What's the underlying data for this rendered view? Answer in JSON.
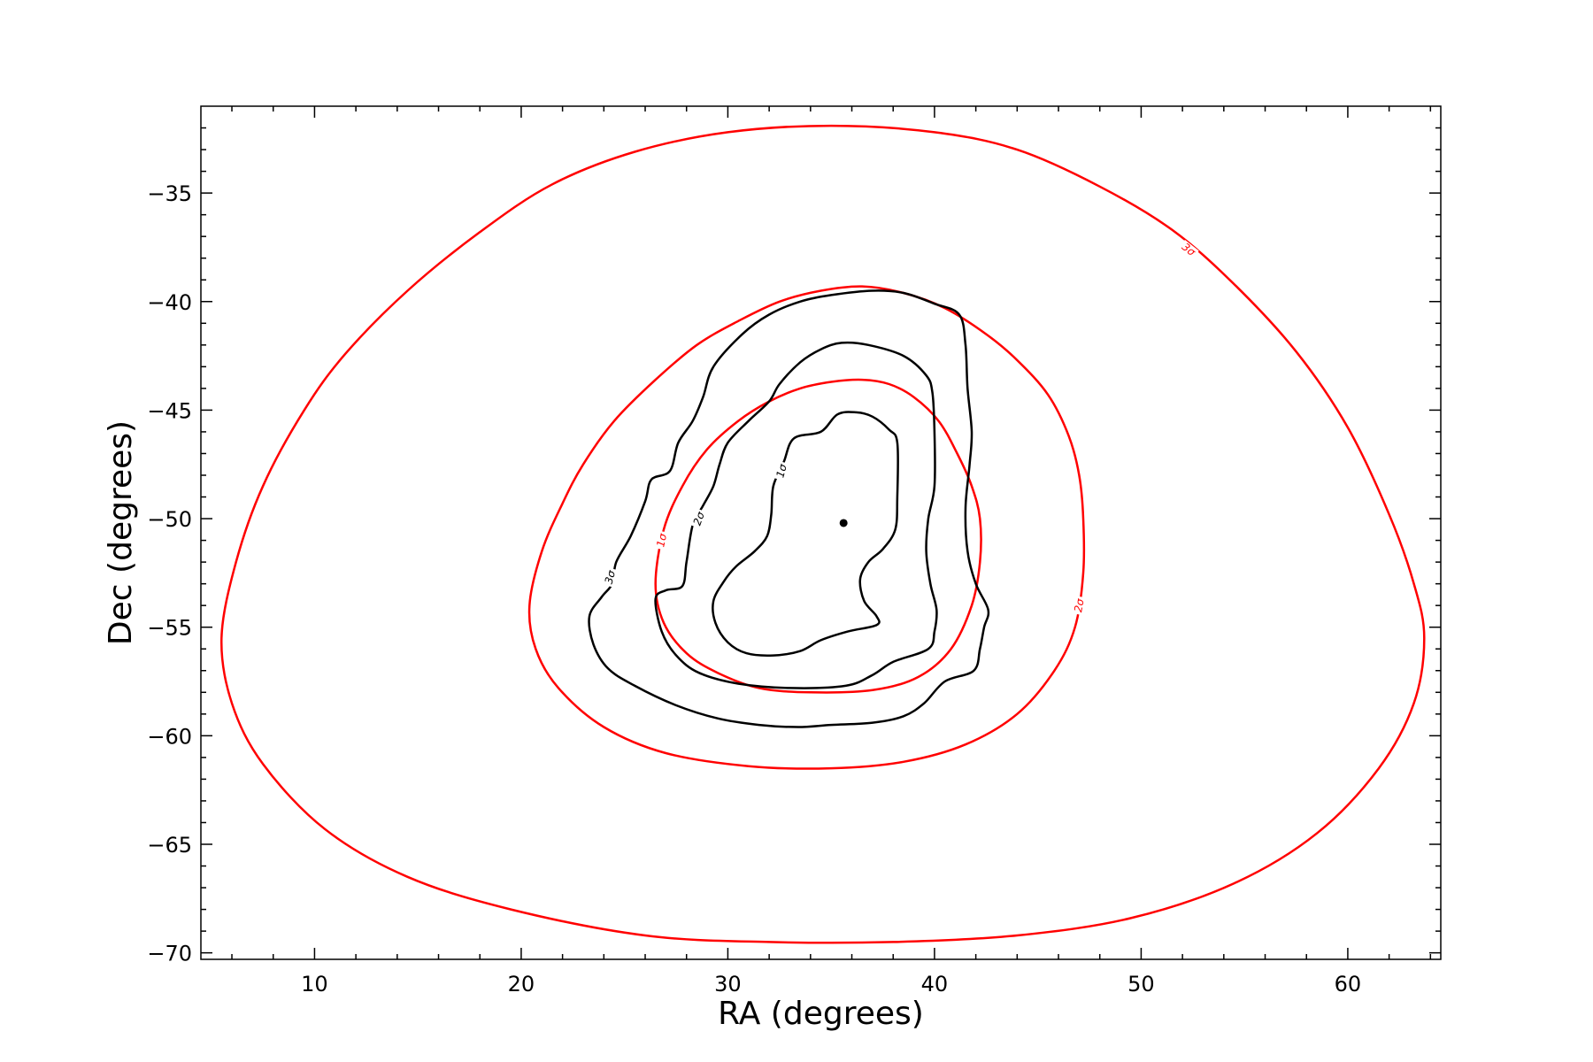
{
  "chart_data": {
    "type": "contour",
    "xlabel": "RA (degrees)",
    "ylabel": "Dec (degrees)",
    "xlim": [
      4.5,
      64.5
    ],
    "ylim": [
      -70.3,
      -31.0
    ],
    "xticks": [
      10,
      20,
      30,
      40,
      50,
      60
    ],
    "yticks": [
      -35,
      -40,
      -45,
      -50,
      -55,
      -60,
      -65,
      -70
    ],
    "grid": false,
    "legend": "none",
    "colors": {
      "black": "#000000",
      "red": "#ff0000"
    },
    "marker": {
      "x": 35.6,
      "y": -50.2
    },
    "contours": [
      {
        "color": "#ff0000",
        "level_label": "1σ",
        "label_at": [
          26.8,
          -51.0
        ],
        "label_angle": -78,
        "points": [
          [
            26.5,
            -53.0
          ],
          [
            26.9,
            -50.5
          ],
          [
            27.8,
            -48.5
          ],
          [
            29.0,
            -46.8
          ],
          [
            30.5,
            -45.5
          ],
          [
            32.0,
            -44.6
          ],
          [
            33.5,
            -44.0
          ],
          [
            35.0,
            -43.7
          ],
          [
            36.5,
            -43.6
          ],
          [
            37.8,
            -43.8
          ],
          [
            39.0,
            -44.4
          ],
          [
            40.2,
            -45.5
          ],
          [
            41.1,
            -47.0
          ],
          [
            41.8,
            -48.5
          ],
          [
            42.2,
            -50.0
          ],
          [
            42.2,
            -52.0
          ],
          [
            41.8,
            -54.0
          ],
          [
            40.8,
            -56.0
          ],
          [
            39.2,
            -57.3
          ],
          [
            37.0,
            -57.9
          ],
          [
            34.0,
            -58.0
          ],
          [
            31.5,
            -57.8
          ],
          [
            29.5,
            -57.1
          ],
          [
            28.0,
            -56.2
          ],
          [
            26.9,
            -54.8
          ],
          [
            26.5,
            -53.0
          ]
        ]
      },
      {
        "color": "#ff0000",
        "level_label": "2σ",
        "label_at": [
          47.0,
          -54.0
        ],
        "label_angle": -80,
        "points": [
          [
            20.4,
            -54.0
          ],
          [
            21.0,
            -51.5
          ],
          [
            22.0,
            -49.3
          ],
          [
            23.0,
            -47.5
          ],
          [
            24.5,
            -45.5
          ],
          [
            26.5,
            -43.6
          ],
          [
            28.5,
            -42.0
          ],
          [
            30.5,
            -40.9
          ],
          [
            32.5,
            -40.0
          ],
          [
            34.5,
            -39.5
          ],
          [
            36.5,
            -39.3
          ],
          [
            38.5,
            -39.6
          ],
          [
            40.5,
            -40.3
          ],
          [
            42.5,
            -41.5
          ],
          [
            44.0,
            -42.7
          ],
          [
            45.5,
            -44.3
          ],
          [
            46.5,
            -46.2
          ],
          [
            47.0,
            -48.0
          ],
          [
            47.2,
            -50.0
          ],
          [
            47.2,
            -52.5
          ],
          [
            46.8,
            -55.0
          ],
          [
            45.8,
            -57.0
          ],
          [
            44.0,
            -59.0
          ],
          [
            41.5,
            -60.4
          ],
          [
            38.5,
            -61.2
          ],
          [
            35.0,
            -61.5
          ],
          [
            31.0,
            -61.4
          ],
          [
            27.0,
            -60.8
          ],
          [
            24.0,
            -59.6
          ],
          [
            21.8,
            -57.8
          ],
          [
            20.7,
            -56.0
          ],
          [
            20.4,
            -54.0
          ]
        ]
      },
      {
        "color": "#ff0000",
        "level_label": "3σ",
        "label_at": [
          52.3,
          -37.6
        ],
        "label_angle": 38,
        "points": [
          [
            5.5,
            -55.5
          ],
          [
            6.2,
            -52.0
          ],
          [
            7.5,
            -48.5
          ],
          [
            9.5,
            -45.0
          ],
          [
            11.5,
            -42.4
          ],
          [
            14.5,
            -39.5
          ],
          [
            18.0,
            -36.8
          ],
          [
            21.5,
            -34.6
          ],
          [
            25.5,
            -33.1
          ],
          [
            30.0,
            -32.2
          ],
          [
            35.0,
            -31.9
          ],
          [
            40.0,
            -32.2
          ],
          [
            44.0,
            -33.0
          ],
          [
            48.0,
            -34.7
          ],
          [
            51.5,
            -36.7
          ],
          [
            54.5,
            -39.2
          ],
          [
            57.5,
            -42.3
          ],
          [
            60.0,
            -45.8
          ],
          [
            62.0,
            -49.8
          ],
          [
            63.2,
            -53.0
          ],
          [
            63.7,
            -55.5
          ],
          [
            63.2,
            -58.5
          ],
          [
            61.5,
            -61.5
          ],
          [
            58.5,
            -64.5
          ],
          [
            54.5,
            -66.8
          ],
          [
            49.5,
            -68.4
          ],
          [
            44.0,
            -69.2
          ],
          [
            38.0,
            -69.5
          ],
          [
            32.0,
            -69.5
          ],
          [
            26.0,
            -69.2
          ],
          [
            19.5,
            -68.0
          ],
          [
            14.5,
            -66.5
          ],
          [
            10.5,
            -64.3
          ],
          [
            7.5,
            -61.3
          ],
          [
            6.0,
            -58.5
          ],
          [
            5.5,
            -55.5
          ]
        ]
      },
      {
        "color": "#000000",
        "level_label": "1σ",
        "label_at": [
          32.6,
          -47.8
        ],
        "label_angle": -75,
        "points": [
          [
            33.2,
            -46.3
          ],
          [
            34.5,
            -46.0
          ],
          [
            35.3,
            -45.2
          ],
          [
            36.2,
            -45.1
          ],
          [
            37.0,
            -45.3
          ],
          [
            37.8,
            -45.9
          ],
          [
            38.2,
            -46.5
          ],
          [
            38.2,
            -49.0
          ],
          [
            38.1,
            -50.5
          ],
          [
            37.5,
            -51.4
          ],
          [
            36.8,
            -52.0
          ],
          [
            36.4,
            -52.8
          ],
          [
            36.6,
            -53.8
          ],
          [
            37.2,
            -54.5
          ],
          [
            37.2,
            -54.9
          ],
          [
            35.8,
            -55.2
          ],
          [
            34.5,
            -55.6
          ],
          [
            33.5,
            -56.1
          ],
          [
            32.2,
            -56.3
          ],
          [
            30.9,
            -56.2
          ],
          [
            30.0,
            -55.7
          ],
          [
            29.4,
            -54.8
          ],
          [
            29.3,
            -53.8
          ],
          [
            29.8,
            -52.9
          ],
          [
            30.4,
            -52.2
          ],
          [
            31.3,
            -51.5
          ],
          [
            31.9,
            -50.8
          ],
          [
            32.1,
            -49.8
          ],
          [
            32.2,
            -48.5
          ],
          [
            32.7,
            -47.4
          ],
          [
            33.2,
            -46.3
          ]
        ]
      },
      {
        "color": "#000000",
        "level_label": "2σ",
        "label_at": [
          28.6,
          -50.0
        ],
        "label_angle": -70,
        "points": [
          [
            32.5,
            -43.8
          ],
          [
            33.5,
            -42.8
          ],
          [
            34.5,
            -42.2
          ],
          [
            35.5,
            -41.9
          ],
          [
            36.8,
            -42.0
          ],
          [
            38.5,
            -42.5
          ],
          [
            39.6,
            -43.4
          ],
          [
            39.9,
            -44.2
          ],
          [
            40.0,
            -46.0
          ],
          [
            40.0,
            -48.5
          ],
          [
            39.7,
            -50.0
          ],
          [
            39.6,
            -51.5
          ],
          [
            39.8,
            -53.0
          ],
          [
            40.1,
            -54.2
          ],
          [
            40.0,
            -55.2
          ],
          [
            39.7,
            -56.0
          ],
          [
            38.0,
            -56.6
          ],
          [
            37.0,
            -57.2
          ],
          [
            35.7,
            -57.7
          ],
          [
            33.0,
            -57.8
          ],
          [
            30.5,
            -57.6
          ],
          [
            28.6,
            -57.1
          ],
          [
            27.5,
            -56.3
          ],
          [
            26.8,
            -55.2
          ],
          [
            26.5,
            -53.7
          ],
          [
            27.0,
            -53.3
          ],
          [
            27.8,
            -53.1
          ],
          [
            28.0,
            -52.0
          ],
          [
            28.3,
            -50.3
          ],
          [
            28.8,
            -49.4
          ],
          [
            29.3,
            -48.5
          ],
          [
            29.6,
            -47.5
          ],
          [
            30.0,
            -46.5
          ],
          [
            31.0,
            -45.5
          ],
          [
            32.0,
            -44.6
          ],
          [
            32.5,
            -43.8
          ]
        ]
      },
      {
        "color": "#000000",
        "level_label": "3σ",
        "label_at": [
          24.3,
          -52.7
        ],
        "label_angle": -75,
        "points": [
          [
            29.3,
            -43.0
          ],
          [
            30.7,
            -41.5
          ],
          [
            32.0,
            -40.6
          ],
          [
            33.5,
            -40.0
          ],
          [
            35.0,
            -39.7
          ],
          [
            37.0,
            -39.5
          ],
          [
            38.5,
            -39.6
          ],
          [
            40.0,
            -40.1
          ],
          [
            41.2,
            -40.6
          ],
          [
            41.5,
            -42.0
          ],
          [
            41.6,
            -44.0
          ],
          [
            41.8,
            -46.0
          ],
          [
            41.7,
            -47.5
          ],
          [
            41.5,
            -49.5
          ],
          [
            41.6,
            -51.5
          ],
          [
            42.0,
            -53.0
          ],
          [
            42.6,
            -54.2
          ],
          [
            42.4,
            -55.0
          ],
          [
            42.2,
            -56.0
          ],
          [
            41.9,
            -57.0
          ],
          [
            40.5,
            -57.5
          ],
          [
            39.5,
            -58.5
          ],
          [
            38.5,
            -59.1
          ],
          [
            37.0,
            -59.4
          ],
          [
            35.0,
            -59.5
          ],
          [
            33.4,
            -59.6
          ],
          [
            31.5,
            -59.5
          ],
          [
            29.5,
            -59.2
          ],
          [
            27.5,
            -58.6
          ],
          [
            25.5,
            -57.7
          ],
          [
            24.2,
            -56.9
          ],
          [
            23.5,
            -55.8
          ],
          [
            23.3,
            -54.5
          ],
          [
            23.9,
            -53.6
          ],
          [
            24.4,
            -53.0
          ],
          [
            24.6,
            -52.0
          ],
          [
            25.3,
            -50.8
          ],
          [
            26.0,
            -49.2
          ],
          [
            26.3,
            -48.2
          ],
          [
            27.2,
            -47.8
          ],
          [
            27.6,
            -46.5
          ],
          [
            28.3,
            -45.5
          ],
          [
            28.8,
            -44.4
          ],
          [
            29.3,
            -43.0
          ]
        ]
      }
    ]
  }
}
